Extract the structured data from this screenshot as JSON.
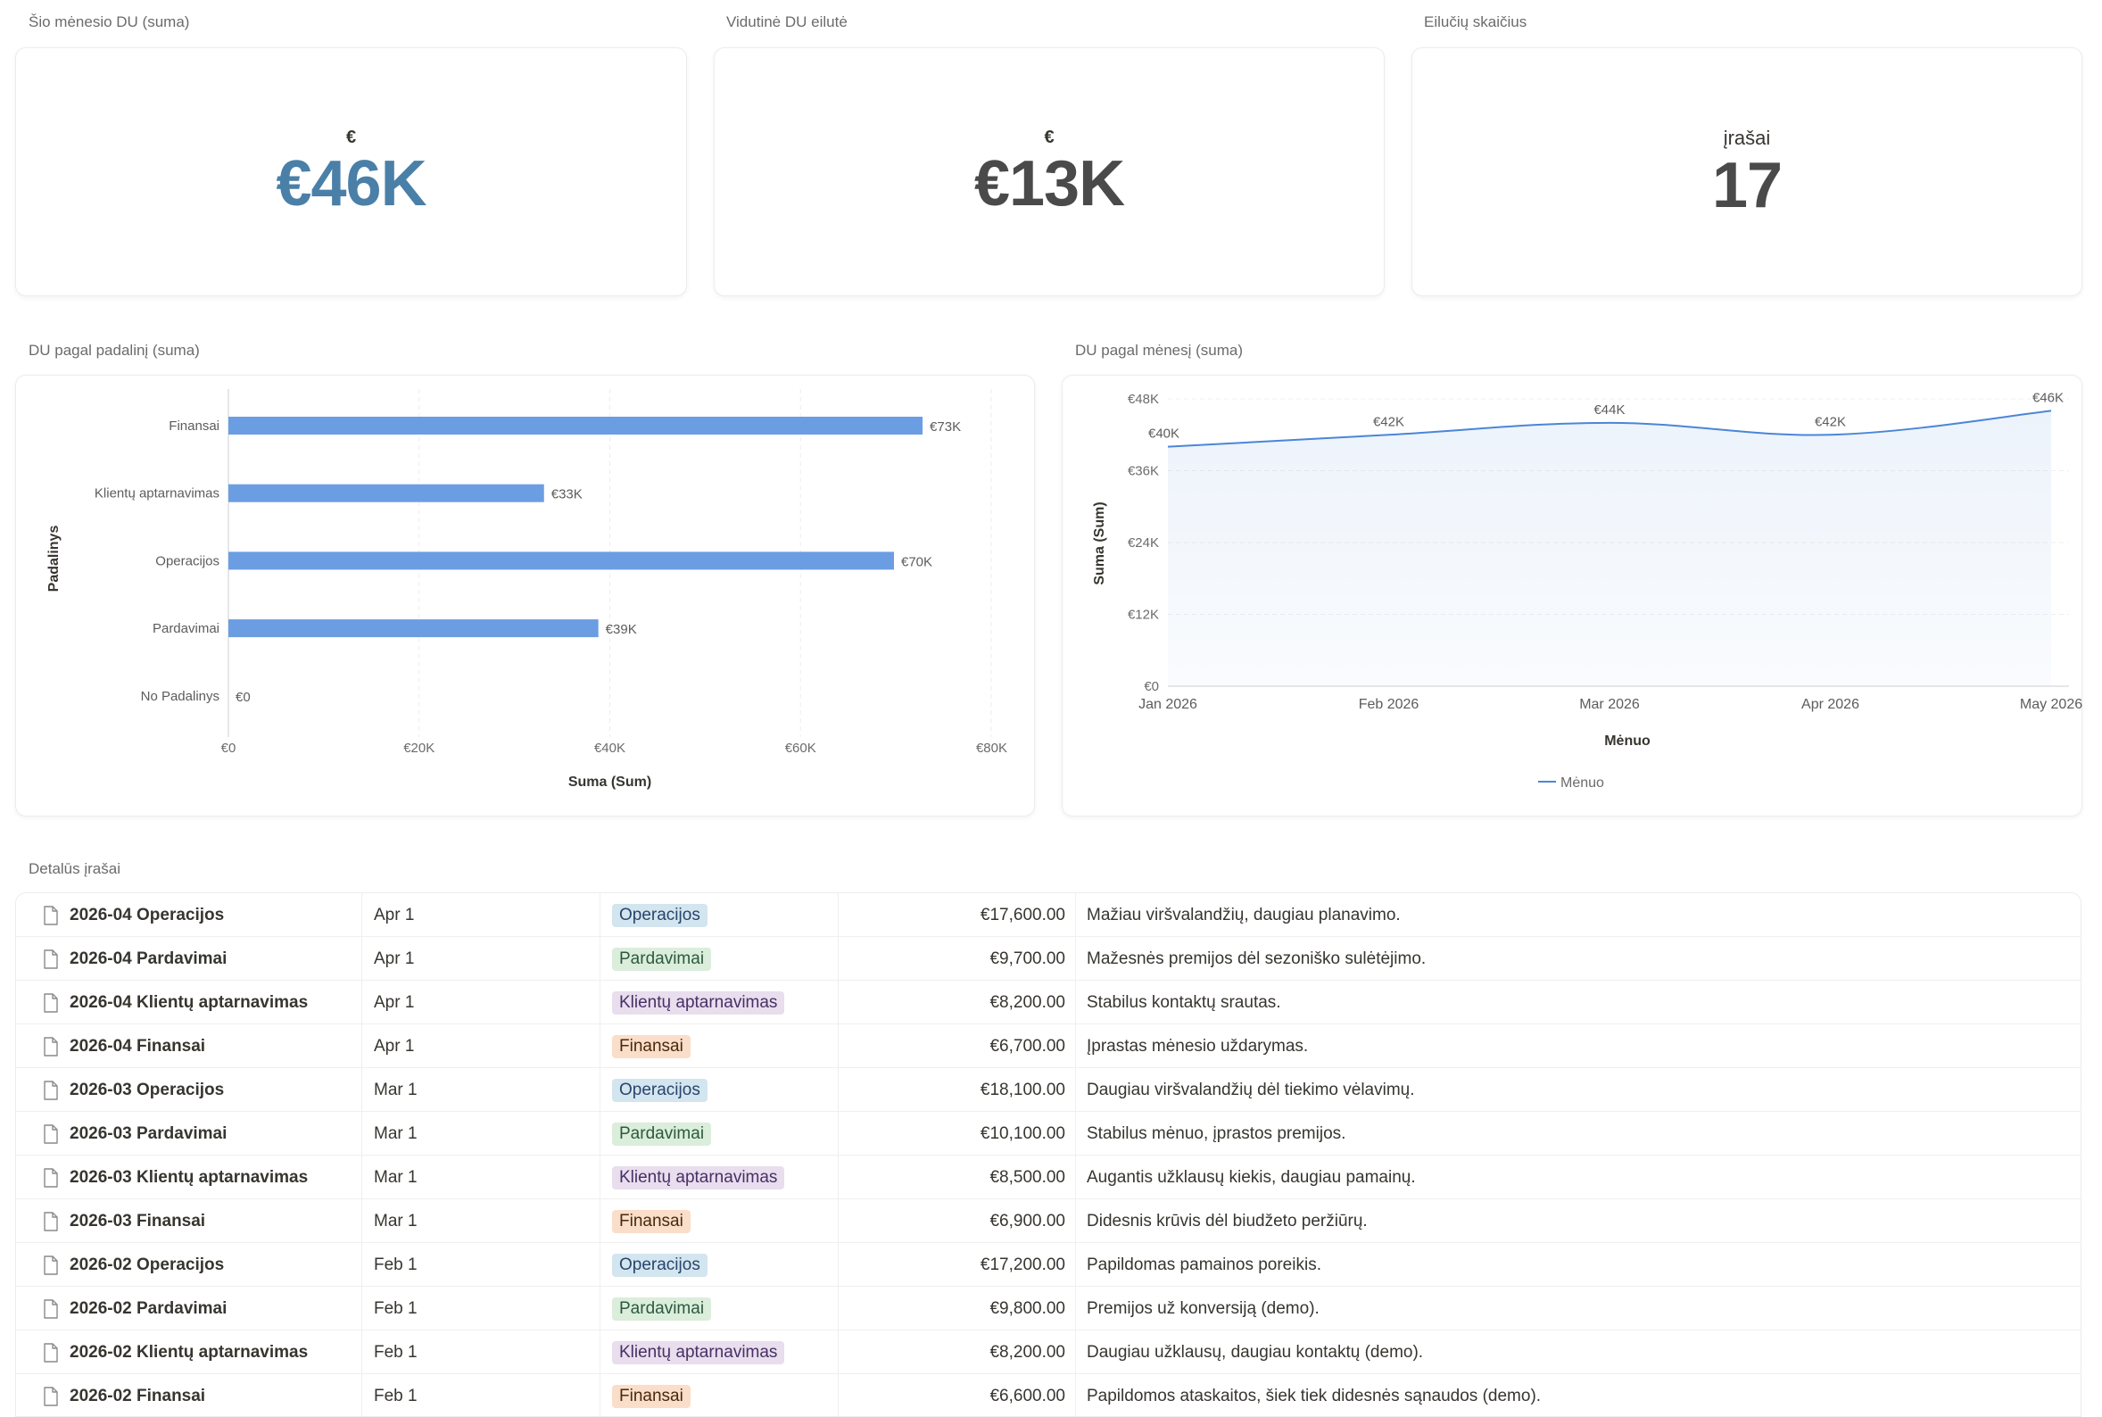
{
  "kpis": [
    {
      "label": "Šio mėnesio DU (suma)",
      "unit": "€",
      "value": "€46K",
      "color": "#4a7fa8"
    },
    {
      "label": "Vidutinė DU eilutė",
      "unit": "€",
      "value": "€13K",
      "color": "#4a4a4a"
    },
    {
      "label": "Eilučių skaičius",
      "unit": "įrašai",
      "value": "17",
      "color": "#4a4a4a"
    }
  ],
  "bar_chart": {
    "label": "DU pagal padalinį (suma)",
    "chart_data": {
      "type": "bar",
      "orientation": "horizontal",
      "categories": [
        "Finansai",
        "Klientų aptarnavimas",
        "Operacijos",
        "Pardavimai",
        "No Padalinys"
      ],
      "values": [
        72800,
        33100,
        69800,
        38800,
        0
      ],
      "value_labels": [
        "€73K",
        "€33K",
        "€70K",
        "€39K",
        "€0"
      ],
      "xlabel": "Suma (Sum)",
      "ylabel": "Padalinys",
      "xlim": [
        0,
        80000
      ],
      "x_ticks": [
        "€0",
        "€20K",
        "€40K",
        "€60K",
        "€80K"
      ],
      "color": "#6b9de3",
      "grid": true
    }
  },
  "line_chart": {
    "label": "DU pagal mėnesį (suma)",
    "chart_data": {
      "type": "area",
      "x": [
        "Jan 2026",
        "Feb 2026",
        "Mar 2026",
        "Apr 2026",
        "May 2026"
      ],
      "series": [
        {
          "name": "Mėnuo",
          "values": [
            40000,
            42000,
            44000,
            42000,
            46000
          ]
        }
      ],
      "value_labels": [
        "€40K",
        "€42K",
        "€44K",
        "€42K",
        "€46K"
      ],
      "xlabel": "Mėnuo",
      "ylabel": "Suma (Sum)",
      "ylim": [
        0,
        48000
      ],
      "y_ticks": [
        "€0",
        "€12K",
        "€24K",
        "€36K",
        "€48K"
      ],
      "color": "#4a86d8",
      "grid": true,
      "legend": "bottom"
    }
  },
  "table": {
    "label": "Detalūs įrašai",
    "rows": [
      {
        "name": "2026-04 Operacijos",
        "date": "Apr 1",
        "tag": "Operacijos",
        "tag_color": "blue",
        "amount": "€17,600.00",
        "note": "Mažiau viršvalandžių, daugiau planavimo."
      },
      {
        "name": "2026-04 Pardavimai",
        "date": "Apr 1",
        "tag": "Pardavimai",
        "tag_color": "green",
        "amount": "€9,700.00",
        "note": "Mažesnės premijos dėl sezoniško sulėtėjimo."
      },
      {
        "name": "2026-04 Klientų aptarnavimas",
        "date": "Apr 1",
        "tag": "Klientų aptarnavimas",
        "tag_color": "purple",
        "amount": "€8,200.00",
        "note": "Stabilus kontaktų srautas."
      },
      {
        "name": "2026-04 Finansai",
        "date": "Apr 1",
        "tag": "Finansai",
        "tag_color": "orange",
        "amount": "€6,700.00",
        "note": "Įprastas mėnesio uždarymas."
      },
      {
        "name": "2026-03 Operacijos",
        "date": "Mar 1",
        "tag": "Operacijos",
        "tag_color": "blue",
        "amount": "€18,100.00",
        "note": "Daugiau viršvalandžių dėl tiekimo vėlavimų."
      },
      {
        "name": "2026-03 Pardavimai",
        "date": "Mar 1",
        "tag": "Pardavimai",
        "tag_color": "green",
        "amount": "€10,100.00",
        "note": "Stabilus mėnuo, įprastos premijos."
      },
      {
        "name": "2026-03 Klientų aptarnavimas",
        "date": "Mar 1",
        "tag": "Klientų aptarnavimas",
        "tag_color": "purple",
        "amount": "€8,500.00",
        "note": "Augantis užklausų kiekis, daugiau pamainų."
      },
      {
        "name": "2026-03 Finansai",
        "date": "Mar 1",
        "tag": "Finansai",
        "tag_color": "orange",
        "amount": "€6,900.00",
        "note": "Didesnis krūvis dėl biudžeto peržiūrų."
      },
      {
        "name": "2026-02 Operacijos",
        "date": "Feb 1",
        "tag": "Operacijos",
        "tag_color": "blue",
        "amount": "€17,200.00",
        "note": "Papildomas pamainos poreikis."
      },
      {
        "name": "2026-02 Pardavimai",
        "date": "Feb 1",
        "tag": "Pardavimai",
        "tag_color": "green",
        "amount": "€9,800.00",
        "note": "Premijos už konversiją (demo)."
      },
      {
        "name": "2026-02 Klientų aptarnavimas",
        "date": "Feb 1",
        "tag": "Klientų aptarnavimas",
        "tag_color": "purple",
        "amount": "€8,200.00",
        "note": "Daugiau užklausų, daugiau kontaktų (demo)."
      },
      {
        "name": "2026-02 Finansai",
        "date": "Feb 1",
        "tag": "Finansai",
        "tag_color": "orange",
        "amount": "€6,600.00",
        "note": "Papildomos ataskaitos, šiek tiek didesnės sąnaudos (demo)."
      }
    ]
  },
  "tag_colors": {
    "blue": {
      "bg": "#d3e5ef",
      "fg": "#28456c"
    },
    "green": {
      "bg": "#dbeddb",
      "fg": "#2b593f"
    },
    "purple": {
      "bg": "#e8deee",
      "fg": "#492f64"
    },
    "orange": {
      "bg": "#fadec9",
      "fg": "#49290e"
    }
  }
}
